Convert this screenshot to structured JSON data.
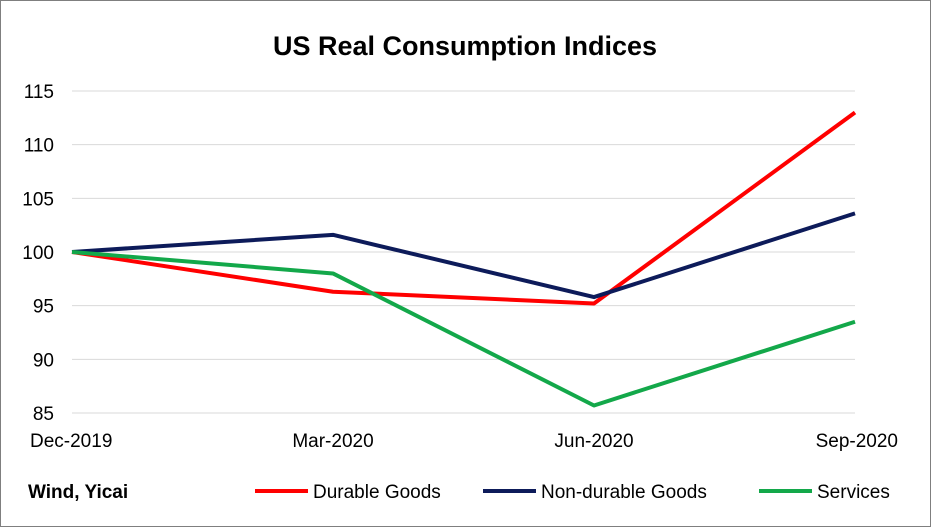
{
  "source": "Wind, Yicai",
  "chart_data": {
    "type": "line",
    "title": "US Real Consumption Indices",
    "xlabel": "",
    "ylabel": "",
    "categories": [
      "Dec-2019",
      "Mar-2020",
      "Jun-2020",
      "Sep-2020"
    ],
    "ylim": [
      85,
      115
    ],
    "yticks": [
      85,
      90,
      95,
      100,
      105,
      110,
      115
    ],
    "grid": true,
    "legend_position": "bottom",
    "series": [
      {
        "name": "Durable Goods",
        "color": "#ff0000",
        "values": [
          100,
          96.3,
          95.2,
          113
        ]
      },
      {
        "name": "Non-durable Goods",
        "color": "#0d1b5a",
        "values": [
          100,
          101.6,
          95.8,
          103.6
        ]
      },
      {
        "name": "Services",
        "color": "#13a84a",
        "values": [
          100,
          98,
          85.7,
          93.5
        ]
      }
    ]
  }
}
